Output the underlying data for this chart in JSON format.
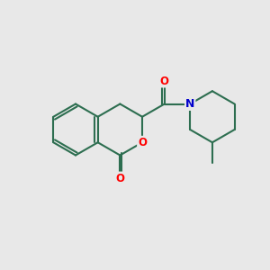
{
  "bg_color": "#e8e8e8",
  "bond_color": "#2d6e50",
  "bond_width": 1.5,
  "atom_colors": {
    "O": "#ff0000",
    "N": "#0000cc"
  },
  "figsize": [
    3.0,
    3.0
  ],
  "dpi": 100
}
